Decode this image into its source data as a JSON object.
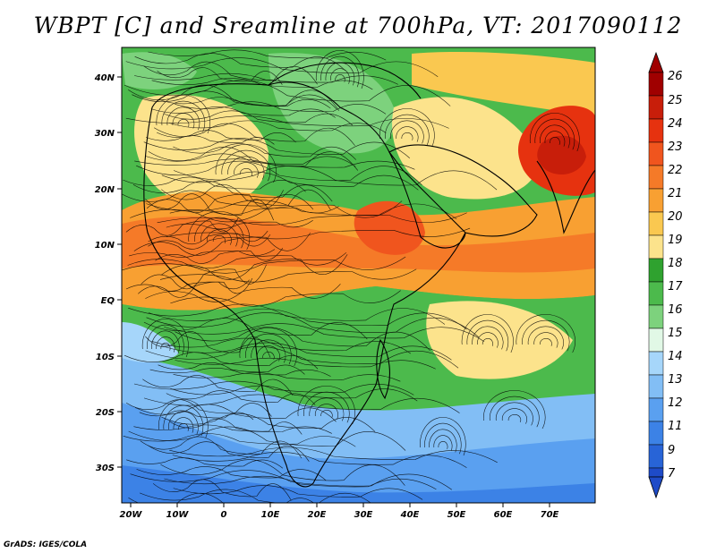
{
  "title": "WBPT [C] and Sreamline at 700hPa, VT: 2017090112",
  "credit": "GrADS: IGES/COLA",
  "lat_labels": [
    "40N",
    "30N",
    "20N",
    "10N",
    "EQ",
    "10S",
    "20S",
    "30S"
  ],
  "lon_labels": [
    "20W",
    "10W",
    "0",
    "10E",
    "20E",
    "30E",
    "40E",
    "50E",
    "60E",
    "70E"
  ],
  "colorbar": {
    "labels": [
      "26",
      "25",
      "24",
      "23",
      "22",
      "21",
      "20",
      "19",
      "18",
      "17",
      "16",
      "15",
      "14",
      "13",
      "12",
      "11",
      "9",
      "7"
    ],
    "colors": [
      "#a00000",
      "#c81e0a",
      "#e6320f",
      "#f0551e",
      "#f57a28",
      "#f8a032",
      "#fac850",
      "#fce38c",
      "#2fa22f",
      "#4cba4c",
      "#7dd27d",
      "#e1f8e6",
      "#a6d6fa",
      "#82bef5",
      "#5aa0f0",
      "#3c82e6",
      "#2864d7",
      "#1e4bc8"
    ]
  },
  "regions": [
    {
      "name": "east-africa-ocean-warm",
      "color": "#fac850"
    },
    {
      "name": "sahel-warm",
      "color": "#f57a28"
    },
    {
      "name": "arabian-peak",
      "color": "#e6320f"
    },
    {
      "name": "india-peak",
      "color": "#c81e0a"
    },
    {
      "name": "sahara-green",
      "color": "#4cba4c"
    },
    {
      "name": "southern-cool",
      "color": "#5aa0f0"
    }
  ]
}
